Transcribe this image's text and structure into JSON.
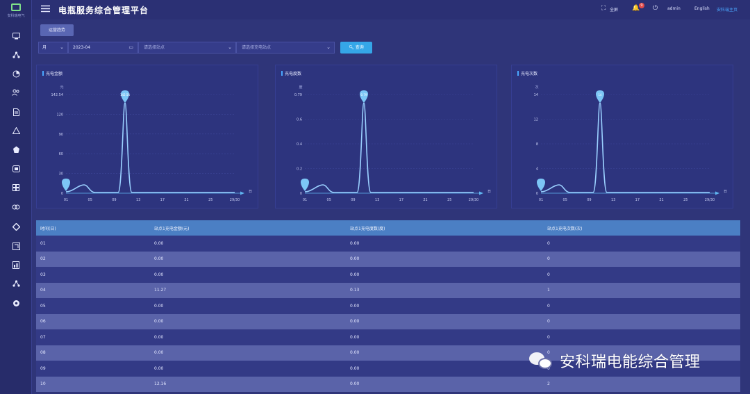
{
  "sidebar": {
    "logo_text": "安科瑞电气",
    "icons": [
      "monitor-icon",
      "network-icon",
      "pie-chart-icon",
      "users-icon",
      "document-icon",
      "alert-icon",
      "charging-pile-icon",
      "screen-icon",
      "grid-icon",
      "link-icon",
      "diamond-icon",
      "export-icon",
      "report-icon",
      "topology-icon",
      "settings-icon"
    ]
  },
  "header": {
    "title": "电瓶服务综合管理平台",
    "fullscreen_label": "全屏",
    "notification_count": "9",
    "user": "admin",
    "language": "English",
    "link": "安科瑞主页"
  },
  "tab": {
    "label": "运营趋势"
  },
  "filters": {
    "period": "月",
    "date": "2023-04",
    "site_placeholder": "请选择站点",
    "device_placeholder": "请选择充电站点",
    "query_label": "查询"
  },
  "charts": [
    {
      "title": "充电金额",
      "y_unit": "元",
      "x_unit": "日",
      "y_ticks": [
        "0",
        "30",
        "60",
        "90",
        "120",
        "142.54"
      ],
      "x_ticks": [
        "01",
        "05",
        "09",
        "13",
        "17",
        "21",
        "25",
        "29/30"
      ],
      "peak_label": "142.54"
    },
    {
      "title": "充电度数",
      "y_unit": "度",
      "x_unit": "日",
      "y_ticks": [
        "0",
        "0.2",
        "0.4",
        "0.6",
        "0.79"
      ],
      "x_ticks": [
        "01",
        "05",
        "09",
        "13",
        "17",
        "21",
        "25",
        "29/30"
      ],
      "peak_label": "0.79"
    },
    {
      "title": "充电次数",
      "y_unit": "次",
      "x_unit": "日",
      "y_ticks": [
        "0",
        "4",
        "8",
        "12",
        "14"
      ],
      "x_ticks": [
        "01",
        "05",
        "09",
        "13",
        "17",
        "21",
        "25",
        "29/30"
      ],
      "peak_label": "14"
    }
  ],
  "table": {
    "headers": [
      "时间(日)",
      "站点1充电金额(元)",
      "站点1充电度数(度)",
      "站点1充电次数(次)"
    ],
    "rows": [
      [
        "01",
        "0.00",
        "0.00",
        "0"
      ],
      [
        "02",
        "0.00",
        "0.00",
        "0"
      ],
      [
        "03",
        "0.00",
        "0.00",
        "0"
      ],
      [
        "04",
        "11.27",
        "0.13",
        "1"
      ],
      [
        "05",
        "0.00",
        "0.00",
        "0"
      ],
      [
        "06",
        "0.00",
        "0.00",
        "0"
      ],
      [
        "07",
        "0.00",
        "0.00",
        "0"
      ],
      [
        "08",
        "0.00",
        "0.00",
        "0"
      ],
      [
        "09",
        "0.00",
        "0.00",
        "0"
      ],
      [
        "10",
        "12.16",
        "0.00",
        "2"
      ]
    ]
  },
  "watermark": "安科瑞电能综合管理",
  "colors": {
    "background": "#2f3579",
    "accent": "#35a6e8",
    "table_header": "#4b7fc4",
    "line": "#9ad0ff"
  }
}
